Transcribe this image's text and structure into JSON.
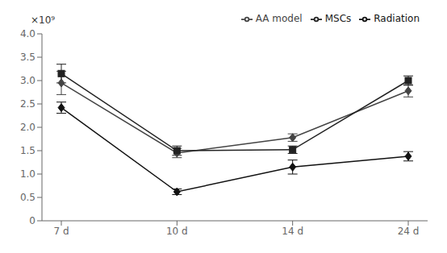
{
  "chart_data": {
    "type": "line",
    "categories": [
      "7 d",
      "10 d",
      "14 d",
      "24 d"
    ],
    "series": [
      {
        "name": "AA model",
        "color": "#444444",
        "marker": "diamond",
        "values": [
          2.95,
          1.45,
          1.78,
          2.78
        ],
        "errors": [
          0.25,
          0.1,
          0.08,
          0.13
        ]
      },
      {
        "name": "MSCs",
        "color": "#222222",
        "marker": "square",
        "values": [
          3.15,
          1.5,
          1.52,
          3.0
        ],
        "errors": [
          0.2,
          0.1,
          0.08,
          0.1
        ]
      },
      {
        "name": "Radiation",
        "color": "#111111",
        "marker": "diamond",
        "values": [
          2.42,
          0.62,
          1.15,
          1.38
        ],
        "errors": [
          0.12,
          0.06,
          0.15,
          0.1
        ]
      }
    ],
    "ylim": [
      0,
      4.0
    ],
    "yticks": [
      0,
      0.5,
      {
        "value": 1.0,
        "label": "1.0"
      },
      1.5,
      {
        "value": 2.0,
        "label": "2.0"
      },
      2.5,
      {
        "value": 3.0,
        "label": "3.0"
      },
      3.5,
      {
        "value": 4.0,
        "label": "4.0"
      }
    ],
    "annotations": [
      "×10⁹"
    ],
    "grid": false,
    "legend": "upper right"
  }
}
